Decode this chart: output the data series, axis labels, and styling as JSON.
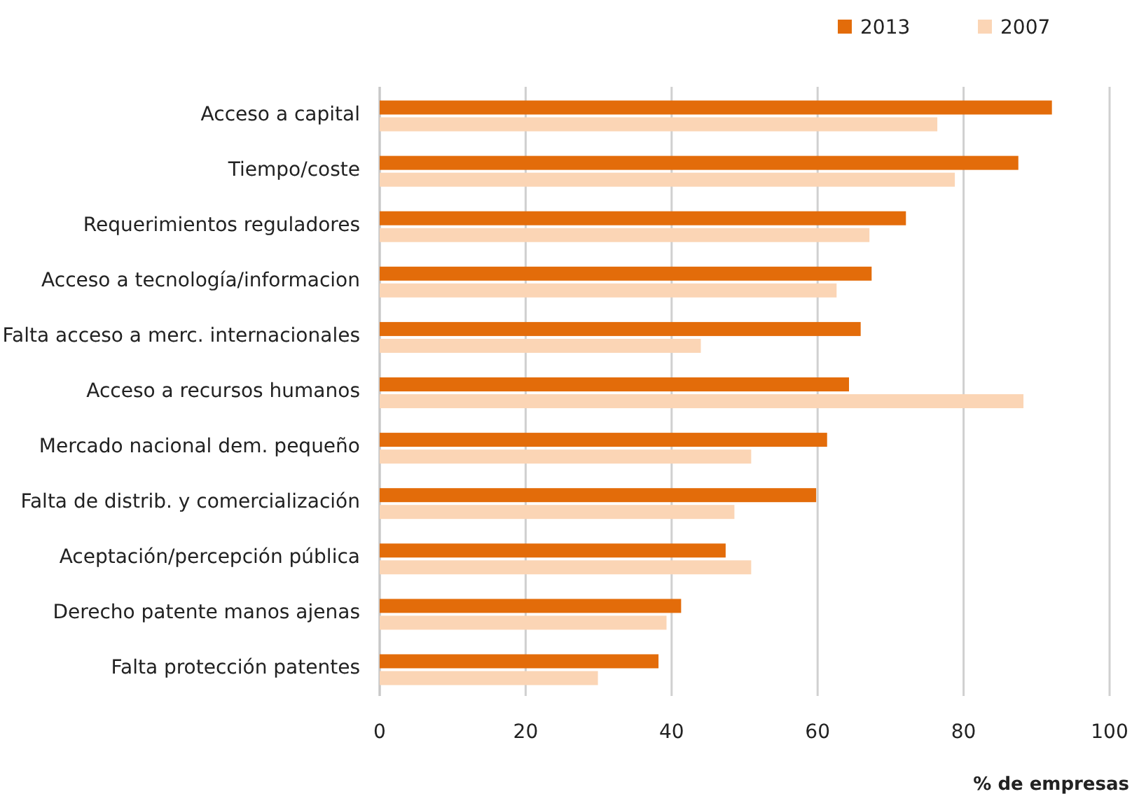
{
  "chart_data": {
    "type": "bar",
    "orientation": "horizontal",
    "xlabel": "% de empresas",
    "categories": [
      "Acceso a capital",
      "Tiempo/coste",
      "Requerimientos reguladores",
      "Acceso a tecnología/informacion",
      "Falta acceso a merc. internacionales",
      "Acceso a recursos humanos",
      "Mercado nacional dem. pequeño",
      "Falta de distrib. y comercialización",
      "Aceptación/percepción pública",
      "Derecho patente manos ajenas",
      "Falta protección patentes"
    ],
    "series": [
      {
        "name": "2013",
        "color": "#e36c0a",
        "values": [
          92.1,
          87.5,
          72.1,
          67.4,
          65.9,
          64.3,
          61.3,
          59.8,
          47.4,
          41.3,
          38.2
        ]
      },
      {
        "name": "2007",
        "color": "#fbd5b5",
        "values": [
          76.4,
          78.8,
          67.1,
          62.6,
          44.0,
          88.2,
          50.9,
          48.6,
          50.9,
          39.3,
          29.9
        ]
      }
    ],
    "xlim": [
      0,
      100
    ],
    "xticks": [
      0,
      20,
      40,
      60,
      80,
      100
    ],
    "grid": "x",
    "legend": "top right"
  }
}
